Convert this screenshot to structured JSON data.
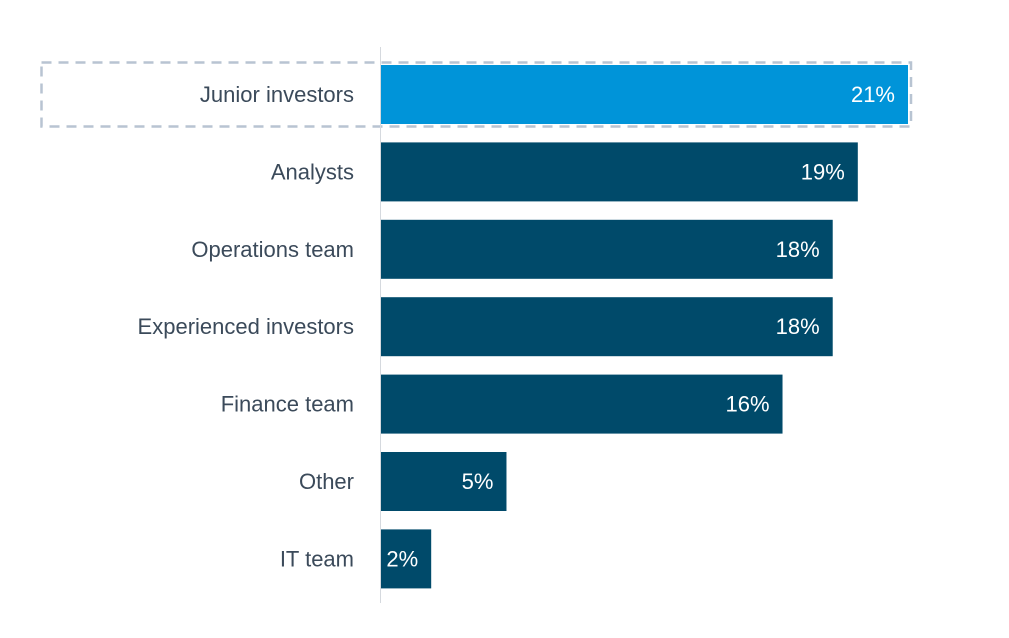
{
  "chart_data": {
    "type": "bar",
    "orientation": "horizontal",
    "categories": [
      "Junior investors",
      "Analysts",
      "Operations team",
      "Experienced investors",
      "Finance team",
      "Other",
      "IT team"
    ],
    "values": [
      21,
      19,
      18,
      18,
      16,
      5,
      2
    ],
    "value_labels": [
      "21%",
      "19%",
      "18%",
      "18%",
      "16%",
      "5%",
      "2%"
    ],
    "unit": "%",
    "xlim": [
      0,
      21
    ],
    "grid": false,
    "legend": "none",
    "highlighted_category": "Junior investors",
    "colors": {
      "bar": "#004a6a",
      "highlight": "#0094d9",
      "highlight_outline": "#b8c4d2",
      "axis": "#d5d9de"
    }
  }
}
